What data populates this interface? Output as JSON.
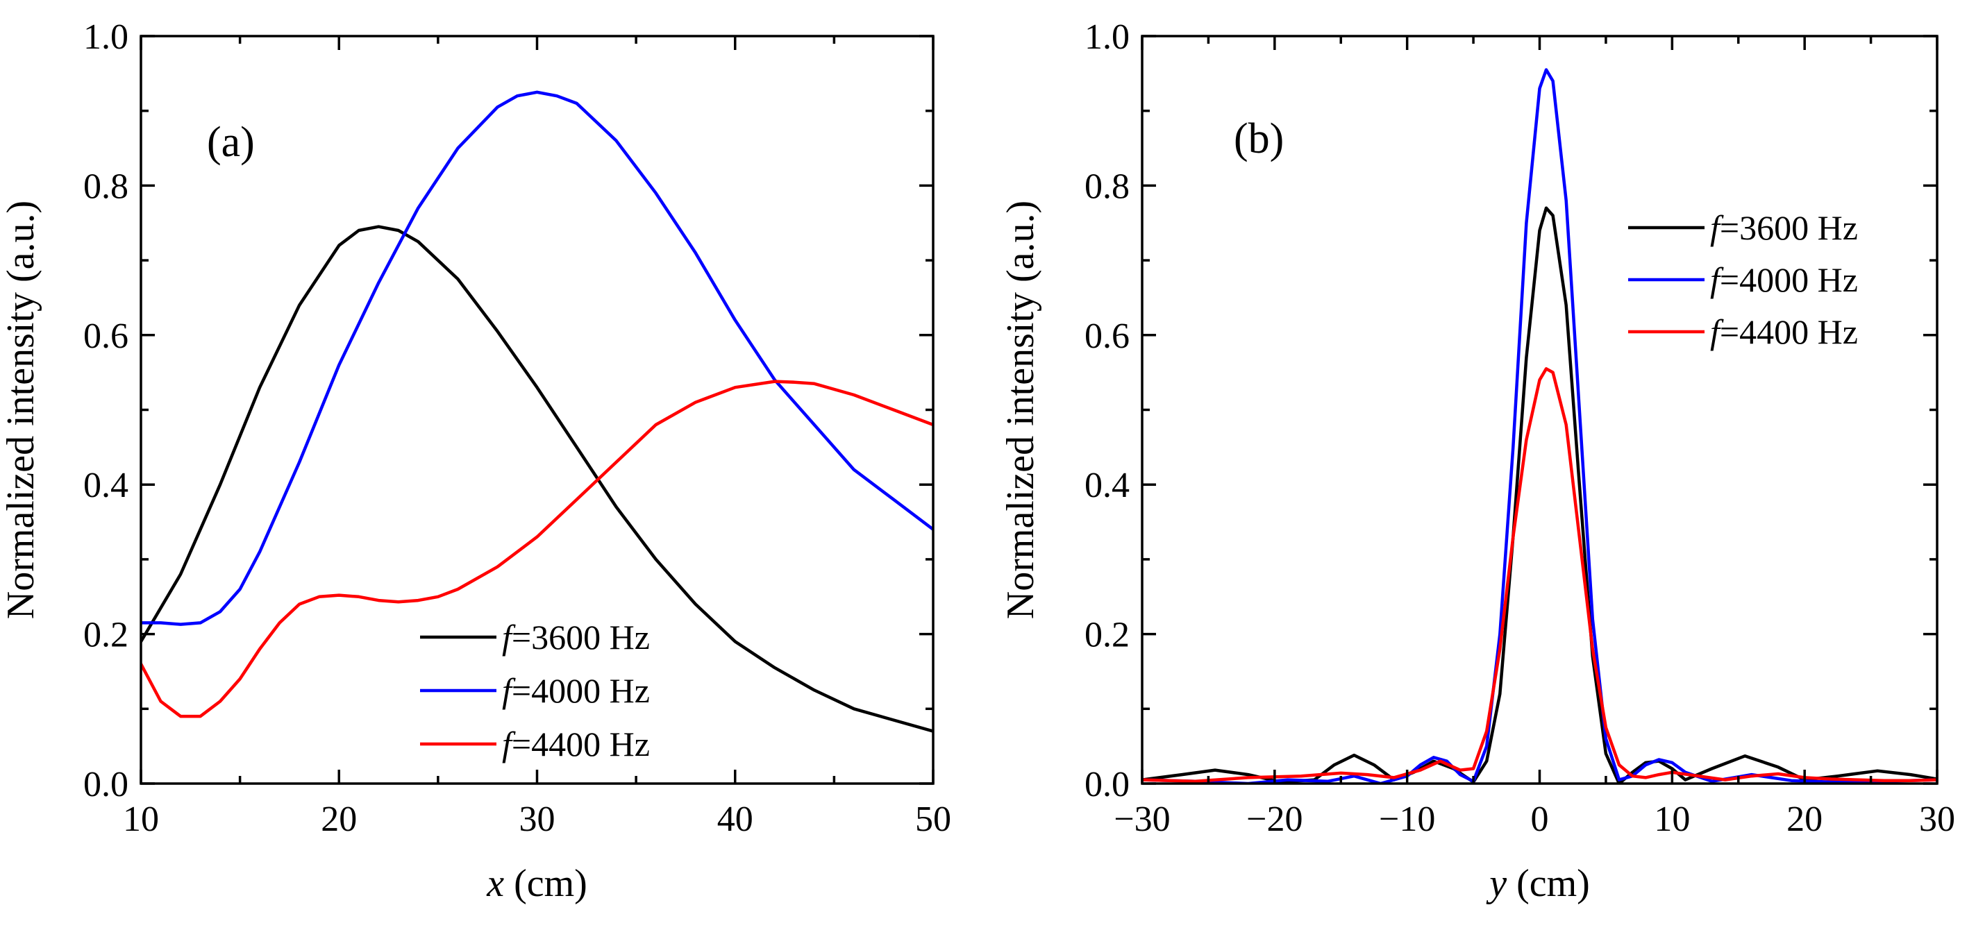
{
  "chart_data": [
    {
      "type": "line",
      "panel_label": "(a)",
      "xlabel_var": "x",
      "xlabel_unit": " (cm)",
      "ylabel": "Normalized intensity (a.u.)",
      "xlim": [
        10,
        50
      ],
      "ylim": [
        0.0,
        1.0
      ],
      "xticks": [
        10,
        20,
        30,
        40,
        50
      ],
      "xtick_labels": [
        "10",
        "20",
        "30",
        "40",
        "50"
      ],
      "yticks": [
        0.0,
        0.2,
        0.4,
        0.6,
        0.8,
        1.0
      ],
      "ytick_labels": [
        "0.0",
        "0.2",
        "0.4",
        "0.6",
        "0.8",
        "1.0"
      ],
      "legend_position": "lower-right",
      "series": [
        {
          "name": "3600 Hz",
          "legend_prefix": "f",
          "color": "#000000",
          "x": [
            10,
            12,
            14,
            16,
            18,
            20,
            21,
            22,
            23,
            24,
            26,
            28,
            30,
            32,
            34,
            36,
            38,
            40,
            42,
            44,
            46,
            48,
            50
          ],
          "y": [
            0.19,
            0.28,
            0.4,
            0.53,
            0.64,
            0.72,
            0.74,
            0.745,
            0.74,
            0.725,
            0.675,
            0.605,
            0.53,
            0.45,
            0.37,
            0.3,
            0.24,
            0.19,
            0.155,
            0.125,
            0.1,
            0.085,
            0.07
          ]
        },
        {
          "name": "4000 Hz",
          "legend_prefix": "f",
          "color": "#0000ff",
          "x": [
            10,
            11,
            12,
            13,
            14,
            15,
            16,
            18,
            20,
            22,
            24,
            26,
            28,
            29,
            30,
            31,
            32,
            34,
            36,
            38,
            40,
            42,
            44,
            46,
            48,
            50
          ],
          "y": [
            0.215,
            0.215,
            0.213,
            0.215,
            0.23,
            0.26,
            0.31,
            0.43,
            0.56,
            0.67,
            0.77,
            0.85,
            0.905,
            0.92,
            0.925,
            0.92,
            0.91,
            0.86,
            0.79,
            0.71,
            0.62,
            0.54,
            0.48,
            0.42,
            0.38,
            0.34
          ]
        },
        {
          "name": "4400 Hz",
          "legend_prefix": "f",
          "color": "#ff0000",
          "x": [
            10,
            11,
            12,
            13,
            14,
            15,
            16,
            17,
            18,
            19,
            20,
            21,
            22,
            23,
            24,
            25,
            26,
            28,
            30,
            32,
            34,
            36,
            38,
            40,
            42,
            43,
            44,
            46,
            48,
            50
          ],
          "y": [
            0.16,
            0.11,
            0.09,
            0.09,
            0.11,
            0.14,
            0.18,
            0.215,
            0.24,
            0.25,
            0.252,
            0.25,
            0.245,
            0.243,
            0.245,
            0.25,
            0.26,
            0.29,
            0.33,
            0.38,
            0.43,
            0.48,
            0.51,
            0.53,
            0.538,
            0.537,
            0.535,
            0.52,
            0.5,
            0.48
          ]
        }
      ]
    },
    {
      "type": "line",
      "panel_label": "(b)",
      "xlabel_var": "y",
      "xlabel_unit": " (cm)",
      "ylabel": "Normalized intensity (a.u.)",
      "xlim": [
        -30,
        30
      ],
      "ylim": [
        0.0,
        1.0
      ],
      "xticks": [
        -30,
        -20,
        -10,
        0,
        10,
        20,
        30
      ],
      "xtick_labels": [
        "−30",
        "−20",
        "−10",
        "0",
        "10",
        "20",
        "30"
      ],
      "yticks": [
        0.0,
        0.2,
        0.4,
        0.6,
        0.8,
        1.0
      ],
      "ytick_labels": [
        "0.0",
        "0.2",
        "0.4",
        "0.6",
        "0.8",
        "1.0"
      ],
      "legend_position": "upper-right",
      "series": [
        {
          "name": "3600 Hz",
          "legend_prefix": "f",
          "color": "#000000",
          "x": [
            -30,
            -27,
            -24.5,
            -22,
            -19.5,
            -17,
            -15.5,
            -14,
            -12.5,
            -11,
            -9.5,
            -8,
            -6.5,
            -5,
            -4,
            -3,
            -2,
            -1,
            0,
            0.5,
            1,
            2,
            3,
            4,
            5,
            6,
            7,
            8,
            9,
            10,
            11,
            13,
            15.5,
            18,
            20,
            22.5,
            25.5,
            28,
            30
          ],
          "y": [
            0.005,
            0.012,
            0.018,
            0.012,
            0.002,
            0.005,
            0.025,
            0.038,
            0.025,
            0.005,
            0.015,
            0.03,
            0.02,
            0.002,
            0.03,
            0.12,
            0.33,
            0.57,
            0.74,
            0.77,
            0.76,
            0.64,
            0.4,
            0.17,
            0.04,
            0.0,
            0.015,
            0.028,
            0.03,
            0.02,
            0.005,
            0.02,
            0.037,
            0.022,
            0.005,
            0.01,
            0.017,
            0.012,
            0.006
          ]
        },
        {
          "name": "4000 Hz",
          "legend_prefix": "f",
          "color": "#0000ff",
          "x": [
            -30,
            -26,
            -22,
            -19,
            -16,
            -14,
            -12,
            -10,
            -9,
            -8,
            -7,
            -6,
            -5,
            -4,
            -3,
            -2,
            -1,
            0,
            0.5,
            1,
            2,
            3,
            4,
            5,
            6,
            7,
            8,
            9,
            10,
            11,
            13,
            16,
            19,
            22,
            26,
            30
          ],
          "y": [
            0.005,
            0.003,
            0.0,
            0.005,
            0.003,
            0.01,
            0.0,
            0.01,
            0.025,
            0.035,
            0.03,
            0.012,
            0.003,
            0.05,
            0.2,
            0.45,
            0.75,
            0.93,
            0.955,
            0.94,
            0.78,
            0.5,
            0.22,
            0.06,
            0.005,
            0.01,
            0.025,
            0.032,
            0.028,
            0.015,
            0.003,
            0.012,
            0.004,
            0.002,
            0.003,
            0.005
          ]
        },
        {
          "name": "4400 Hz",
          "legend_prefix": "f",
          "color": "#ff0000",
          "x": [
            -30,
            -26,
            -22,
            -18,
            -15,
            -13,
            -11,
            -9,
            -7.5,
            -6,
            -5,
            -4,
            -3,
            -2,
            -1,
            0,
            0.5,
            1,
            2,
            3,
            4,
            5,
            6,
            7,
            8,
            9,
            10,
            12,
            14,
            16,
            18,
            20,
            22,
            24,
            26,
            28,
            30
          ],
          "y": [
            0.005,
            0.003,
            0.008,
            0.01,
            0.014,
            0.012,
            0.008,
            0.018,
            0.03,
            0.018,
            0.02,
            0.07,
            0.18,
            0.33,
            0.46,
            0.54,
            0.555,
            0.55,
            0.48,
            0.33,
            0.18,
            0.075,
            0.025,
            0.01,
            0.008,
            0.012,
            0.015,
            0.01,
            0.005,
            0.01,
            0.013,
            0.008,
            0.006,
            0.005,
            0.004,
            0.004,
            0.005
          ]
        }
      ]
    }
  ]
}
